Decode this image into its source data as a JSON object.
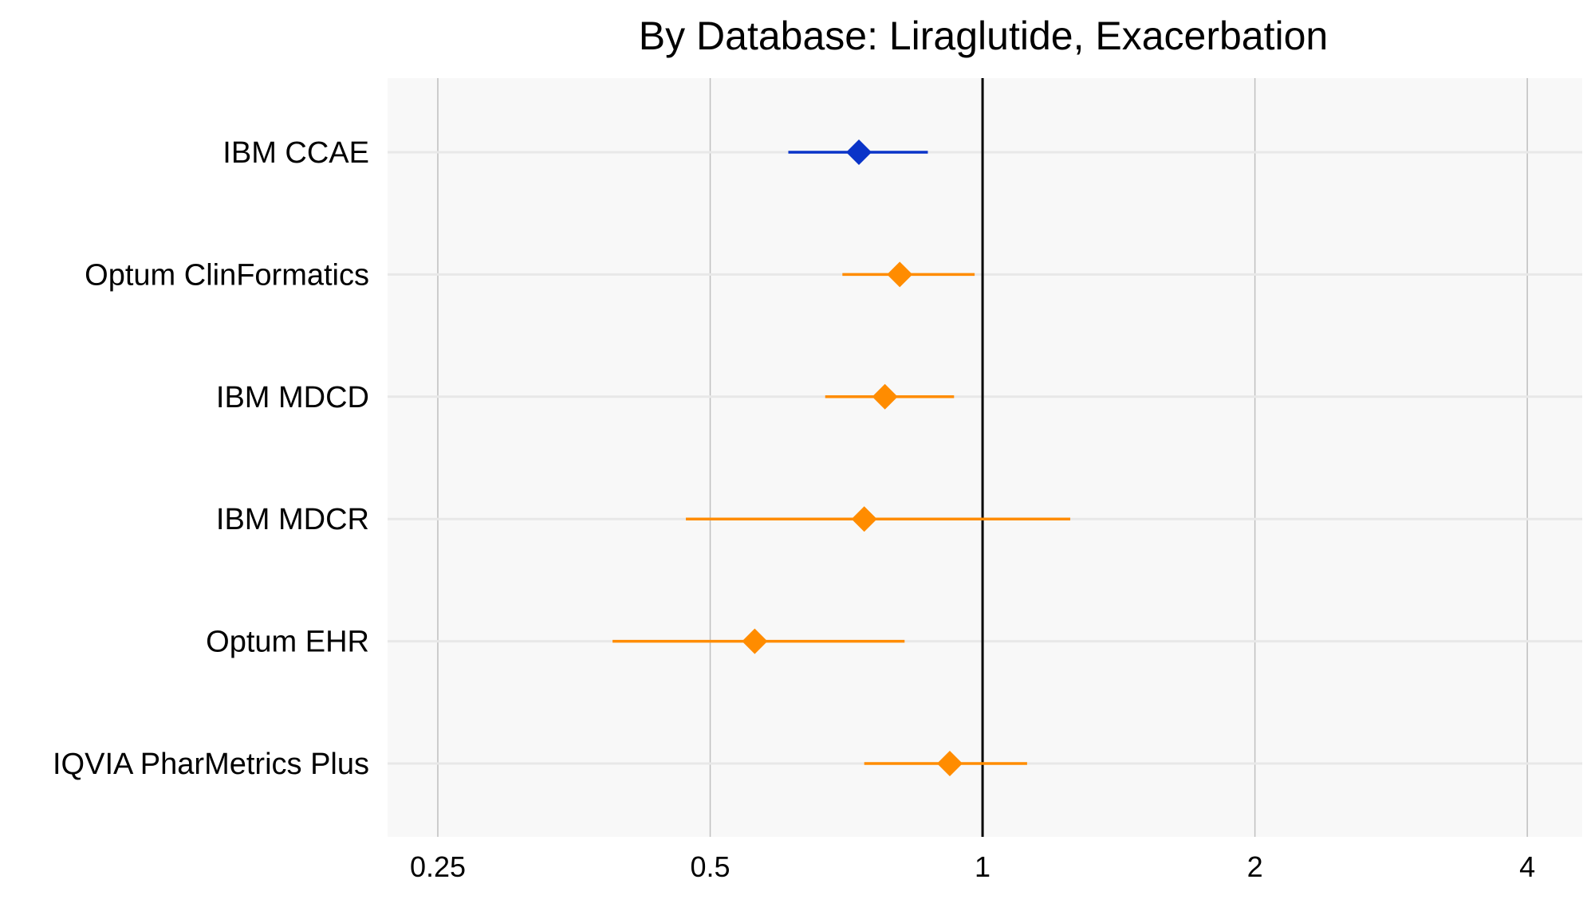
{
  "chart_data": {
    "type": "scatter",
    "subtype": "forest-plot",
    "title": "By Database: Liraglutide, Exacerbation",
    "xlabel": "",
    "ylabel": "",
    "x_scale": "log2",
    "xlim": [
      0.22,
      4.6
    ],
    "x_ticks": [
      0.25,
      0.5,
      1,
      2,
      4
    ],
    "x_tick_labels": [
      "0.25",
      "0.5",
      "1",
      "2",
      "4"
    ],
    "reference_line": 1,
    "grid": true,
    "legend": "none",
    "colors": {
      "primary": "#0a34c8",
      "secondary": "#ff8c00",
      "panel": "#f8f8f8",
      "grid_v": "#bfbfbf",
      "grid_h": "#e8e8e8",
      "reference": "#000000"
    },
    "categories": [
      "IBM CCAE",
      "Optum ClinFormatics",
      "IBM MDCD",
      "IBM MDCR",
      "Optum EHR",
      "IQVIA PharMetrics Plus"
    ],
    "estimates": [
      {
        "label": "IBM CCAE",
        "estimate": 0.73,
        "lower": 0.61,
        "upper": 0.87,
        "highlight": true
      },
      {
        "label": "Optum ClinFormatics",
        "estimate": 0.81,
        "lower": 0.7,
        "upper": 0.98,
        "highlight": false
      },
      {
        "label": "IBM MDCD",
        "estimate": 0.78,
        "lower": 0.67,
        "upper": 0.93,
        "highlight": false
      },
      {
        "label": "IBM MDCR",
        "estimate": 0.74,
        "lower": 0.47,
        "upper": 1.25,
        "highlight": false
      },
      {
        "label": "Optum EHR",
        "estimate": 0.56,
        "lower": 0.39,
        "upper": 0.82,
        "highlight": false
      },
      {
        "label": "IQVIA PharMetrics Plus",
        "estimate": 0.92,
        "lower": 0.74,
        "upper": 1.12,
        "highlight": false
      }
    ]
  }
}
